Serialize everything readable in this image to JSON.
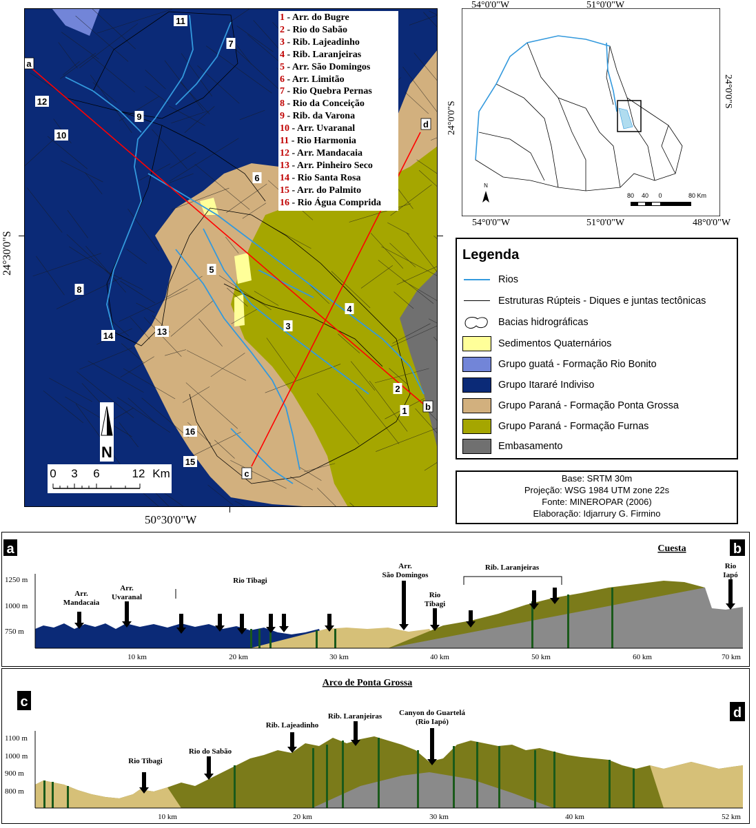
{
  "main_map": {
    "top_coord_label": "",
    "left_coord_label": "24°30'0\"S",
    "bottom_coord_label": "50°30'0\"W",
    "profile_points": [
      "a",
      "b",
      "c",
      "d"
    ],
    "basin_numbers": [
      "1",
      "2",
      "3",
      "4",
      "5",
      "6",
      "7",
      "8",
      "9",
      "10",
      "11",
      "12",
      "13",
      "14",
      "15",
      "16"
    ],
    "scale_bar": {
      "ticks": [
        "0",
        "3",
        "6",
        "12"
      ],
      "unit": "Km"
    },
    "north_label": "N"
  },
  "rivers_list": [
    {
      "num": "1",
      "name": "Arr. do Bugre"
    },
    {
      "num": "2",
      "name": "Rio do Sabão"
    },
    {
      "num": "3",
      "name": "Rib. Lajeadinho"
    },
    {
      "num": "4",
      "name": "Rib. Laranjeiras"
    },
    {
      "num": "5",
      "name": "Arr. São Domingos"
    },
    {
      "num": "6",
      "name": "Arr. Limitão"
    },
    {
      "num": "7",
      "name": "Rio Quebra Pernas"
    },
    {
      "num": "8",
      "name": "Rio da Conceição"
    },
    {
      "num": "9",
      "name": "Rib. da Varona"
    },
    {
      "num": "10",
      "name": "Arr. Uvaranal"
    },
    {
      "num": "11",
      "name": "Rio Harmonia"
    },
    {
      "num": "12",
      "name": "Arr. Mandacaia"
    },
    {
      "num": "13",
      "name": "Arr. Pinheiro Seco"
    },
    {
      "num": "14",
      "name": "Rio Santa Rosa"
    },
    {
      "num": "15",
      "name": "Arr. do Palmito"
    },
    {
      "num": "16",
      "name": "Rio Água Comprida"
    }
  ],
  "inset_map": {
    "top_labels": [
      "54°0'0\"W",
      "51°0'0\"W"
    ],
    "bottom_labels": [
      "54°0'0\"W",
      "51°0'0\"W",
      "48°0'0\"W"
    ],
    "left_label": "24°0'0\"S",
    "right_label": "24°0'0\"S",
    "scale_ticks": [
      "80",
      "40",
      "0",
      "80 Km"
    ],
    "north_label": "N"
  },
  "legend": {
    "title": "Legenda",
    "items": [
      {
        "label": "Rios",
        "kind": "line",
        "color": "#3399dd"
      },
      {
        "label": "Estruturas Rúpteis - Diques e juntas tectônicas",
        "kind": "line",
        "color": "#000000"
      },
      {
        "label": "Bacias hidrográficas",
        "kind": "basin",
        "color": "#ffffff"
      },
      {
        "label": "Sedimentos Quaternários",
        "kind": "fill",
        "color": "#ffff99"
      },
      {
        "label": "Grupo guatá - Formação Rio Bonito",
        "kind": "fill",
        "color": "#7285d8"
      },
      {
        "label": "Grupo Itararé Indiviso",
        "kind": "fill",
        "color": "#0b2a77"
      },
      {
        "label": "Grupo Paraná - Formação Ponta Grossa",
        "kind": "fill",
        "color": "#d2b07e"
      },
      {
        "label": "Grupo Paraná - Formação Furnas",
        "kind": "fill",
        "color": "#a5a600"
      },
      {
        "label": "Embasamento",
        "kind": "fill",
        "color": "#707070"
      }
    ]
  },
  "credits": [
    "Base: SRTM 30m",
    "Projeção: WSG 1984 UTM zone 22s",
    "Fonte: MINEROPAR (2006)",
    "Elaboração: Idjarrury G. Firmino"
  ],
  "profile_ab": {
    "left_letter": "a",
    "right_letter": "b",
    "title": "Cuesta",
    "y_ticks": [
      "1250 m",
      "1000 m",
      "750 m"
    ],
    "x_ticks": [
      "10 km",
      "20 km",
      "30 km",
      "40 km",
      "50 km",
      "60 km",
      "70 km"
    ],
    "labels": [
      {
        "text": [
          "Arr.",
          "Mandacaia"
        ]
      },
      {
        "text": [
          "Arr.",
          "Uvaranal"
        ]
      },
      {
        "text": [
          "Rio Tibagi"
        ]
      },
      {
        "text": [
          "Arr.",
          "São Domingos"
        ]
      },
      {
        "text": [
          "Rio",
          "Tibagi"
        ]
      },
      {
        "text": [
          "Rib. Laranjeiras"
        ]
      },
      {
        "text": [
          "Rio",
          "Iapó"
        ]
      }
    ]
  },
  "profile_cd": {
    "left_letter": "c",
    "right_letter": "d",
    "title": "Arco de Ponta Grossa",
    "y_ticks": [
      "1100 m",
      "1000 m",
      "900 m",
      "800 m"
    ],
    "x_ticks": [
      "10 km",
      "20 km",
      "30 km",
      "40 km",
      "52 km"
    ],
    "labels": [
      {
        "text": [
          "Rio Tibagi"
        ]
      },
      {
        "text": [
          "Rio do Sabão"
        ]
      },
      {
        "text": [
          "Rib. Lajeadinho"
        ]
      },
      {
        "text": [
          "Rib. Laranjeiras"
        ]
      },
      {
        "text": [
          "Canyon do Guartelá",
          "(Rio Iapó)"
        ]
      }
    ]
  },
  "colors": {
    "itarare": "#0b2a77",
    "ponta_grossa": "#d2b07e",
    "furnas": "#a5a600",
    "embasamento": "#707070",
    "rio_bonito": "#7285d8",
    "quaternario": "#ffff99",
    "rivers": "#3399dd",
    "section_line": "#ff0000",
    "profile_furnas": "#7b7b1a",
    "profile_pg": "#d6c078",
    "dike": "#1a5a1a"
  }
}
